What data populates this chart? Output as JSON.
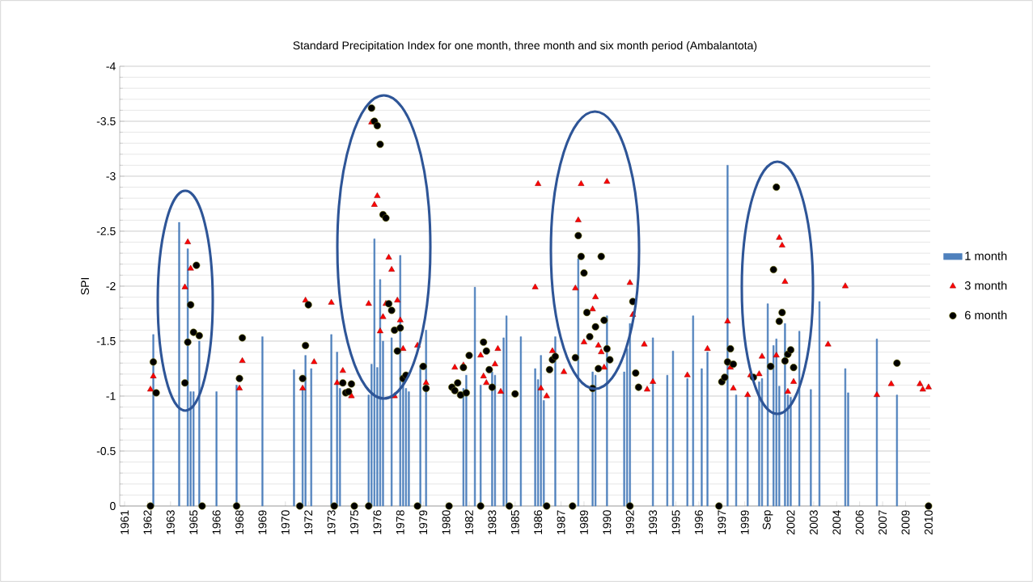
{
  "chart_data": {
    "type": "bar",
    "title": "Standard Precipitation  Index for one month, three month and six month period (Ambalantota)",
    "ylabel": "SPI",
    "categories": [
      "1961",
      null,
      null,
      null,
      null,
      null,
      null,
      null,
      "1962",
      null,
      null,
      null,
      null,
      null,
      null,
      null,
      "1963",
      null,
      null,
      null,
      null,
      null,
      null,
      null,
      "1965",
      null,
      null,
      null,
      null,
      null,
      null,
      null,
      "1966",
      null,
      null,
      null,
      null,
      null,
      null,
      null,
      "1968",
      null,
      null,
      null,
      null,
      null,
      null,
      null,
      "1969",
      null,
      null,
      null,
      null,
      null,
      null,
      null,
      "1970",
      null,
      null,
      null,
      null,
      null,
      null,
      null,
      "1972",
      null,
      null,
      null,
      null,
      null,
      null,
      null,
      "1973",
      null,
      null,
      null,
      null,
      null,
      null,
      null,
      "1975",
      null,
      null,
      null,
      null,
      null,
      null,
      null,
      "1976",
      null,
      null,
      null,
      null,
      null,
      null,
      null,
      "1978",
      null,
      null,
      null,
      null,
      null,
      null,
      null,
      "1979",
      null,
      null,
      null,
      null,
      null,
      null,
      null,
      "1980",
      null,
      null,
      null,
      null,
      null,
      null,
      null,
      "1982",
      null,
      null,
      null,
      null,
      null,
      null,
      null,
      "1983",
      null,
      null,
      null,
      null,
      null,
      null,
      null,
      "1985",
      null,
      null,
      null,
      null,
      null,
      null,
      null,
      "1986",
      null,
      null,
      null,
      null,
      null,
      null,
      null,
      "1987",
      null,
      null,
      null,
      null,
      null,
      null,
      null,
      "1989",
      null,
      null,
      null,
      null,
      null,
      null,
      null,
      "1990",
      null,
      null,
      null,
      null,
      null,
      null,
      null,
      "1992",
      null,
      null,
      null,
      null,
      null,
      null,
      null,
      "1993",
      null,
      null,
      null,
      null,
      null,
      null,
      null,
      "1995",
      null,
      null,
      null,
      null,
      null,
      null,
      null,
      "1996",
      null,
      null,
      null,
      null,
      null,
      null,
      null,
      "1997",
      null,
      null,
      null,
      null,
      null,
      null,
      null,
      "1999",
      null,
      null,
      null,
      null,
      null,
      null,
      null,
      "Sep",
      null,
      null,
      null,
      null,
      null,
      null,
      null,
      "2002",
      null,
      null,
      null,
      null,
      null,
      null,
      null,
      "2003",
      null,
      null,
      null,
      null,
      null,
      null,
      null,
      "2004",
      null,
      null,
      null,
      null,
      null,
      null,
      null,
      "2006",
      null,
      null,
      null,
      null,
      null,
      null,
      null,
      "2007",
      null,
      null,
      null,
      null,
      null,
      null,
      null,
      "2009",
      null,
      null,
      null,
      null,
      null,
      null,
      null,
      "2010"
    ],
    "series": [
      {
        "name": "1 month",
        "color": "#4f81bd",
        "values": [
          null,
          null,
          null,
          null,
          null,
          null,
          null,
          null,
          null,
          null,
          -1.56,
          null,
          null,
          null,
          null,
          null,
          null,
          null,
          null,
          -2.58,
          null,
          null,
          -2.34,
          -1.04,
          -1.04,
          null,
          -1.5,
          null,
          null,
          null,
          null,
          null,
          -1.04,
          null,
          null,
          null,
          null,
          null,
          null,
          -1.1,
          null,
          null,
          null,
          null,
          null,
          null,
          null,
          null,
          -1.54,
          null,
          null,
          null,
          null,
          null,
          null,
          null,
          null,
          null,
          null,
          -1.24,
          null,
          null,
          -1.07,
          -1.37,
          null,
          -1.25,
          null,
          null,
          null,
          null,
          null,
          null,
          -1.56,
          null,
          -1.4,
          -1.07,
          null,
          null,
          null,
          null,
          null,
          null,
          null,
          null,
          null,
          -1.01,
          -1.29,
          -2.43,
          -1.26,
          -2.06,
          -1.5,
          null,
          null,
          -1.53,
          null,
          null,
          -2.28,
          -1.13,
          -1.07,
          -1.04,
          null,
          null,
          null,
          -1.28,
          null,
          -1.6,
          null,
          null,
          null,
          null,
          null,
          null,
          null,
          null,
          null,
          null,
          null,
          null,
          -1.07,
          -1.19,
          null,
          null,
          -1.99,
          null,
          -1.1,
          null,
          null,
          null,
          -1.22,
          -1.19,
          null,
          null,
          -1.53,
          -1.73,
          null,
          null,
          null,
          null,
          -1.54,
          null,
          null,
          null,
          null,
          -1.25,
          -1.15,
          -1.37,
          -0.96,
          null,
          null,
          null,
          -1.54,
          null,
          null,
          null,
          null,
          null,
          null,
          null,
          -2.25,
          null,
          null,
          null,
          null,
          -1.22,
          -1.19,
          null,
          null,
          null,
          -1.73,
          null,
          null,
          null,
          null,
          null,
          -1.22,
          -1.43,
          -1.66,
          null,
          null,
          null,
          null,
          null,
          null,
          null,
          -1.53,
          null,
          null,
          null,
          null,
          -1.19,
          null,
          -1.41,
          null,
          null,
          null,
          null,
          -1.16,
          null,
          -1.73,
          null,
          null,
          -1.25,
          null,
          -1.4,
          null,
          null,
          null,
          null,
          null,
          null,
          -3.1,
          null,
          null,
          -1.01,
          null,
          null,
          null,
          -0.99,
          null,
          null,
          null,
          -1.13,
          -1.16,
          null,
          -1.84,
          null,
          -1.46,
          -1.52,
          -1.09,
          null,
          -1.66,
          -1.01,
          -0.99,
          null,
          null,
          -1.59,
          null,
          null,
          null,
          -1.06,
          null,
          null,
          -1.86,
          null,
          null,
          null,
          null,
          null,
          null,
          null,
          null,
          -1.25,
          -1.03,
          null,
          null,
          null,
          null,
          null,
          null,
          null,
          null,
          null,
          -1.52,
          null,
          null,
          null,
          null,
          null,
          null,
          -1.01,
          null,
          null,
          null,
          null,
          null,
          null,
          null,
          null,
          null,
          null,
          null
        ]
      },
      {
        "name": "3 month",
        "type": "scatter",
        "marker": "triangle",
        "color": "#ff0000",
        "values": [
          null,
          null,
          null,
          null,
          null,
          null,
          null,
          null,
          null,
          -1.06,
          -1.18,
          null,
          null,
          null,
          null,
          null,
          null,
          null,
          null,
          null,
          null,
          -1.99,
          -2.4,
          -2.16,
          null,
          null,
          null,
          null,
          null,
          null,
          null,
          null,
          null,
          null,
          null,
          null,
          null,
          null,
          null,
          null,
          -1.07,
          -1.32,
          null,
          null,
          null,
          null,
          null,
          null,
          null,
          null,
          null,
          null,
          null,
          null,
          null,
          null,
          null,
          null,
          null,
          null,
          null,
          null,
          -1.07,
          -1.87,
          null,
          null,
          -1.31,
          null,
          null,
          null,
          null,
          null,
          -1.85,
          null,
          -1.12,
          null,
          -1.23,
          null,
          null,
          -1.0,
          null,
          null,
          null,
          null,
          null,
          -1.84,
          -3.49,
          -2.74,
          -2.82,
          -1.59,
          -1.72,
          -1.84,
          -2.26,
          -2.15,
          -1.0,
          -1.87,
          -1.69,
          -1.43,
          null,
          null,
          null,
          null,
          -1.46,
          null,
          null,
          -1.12,
          null,
          null,
          null,
          null,
          null,
          null,
          null,
          null,
          null,
          -1.26,
          null,
          null,
          -1.28,
          null,
          null,
          null,
          null,
          null,
          -1.37,
          -1.18,
          -1.12,
          null,
          null,
          -1.29,
          -1.43,
          -1.04,
          null,
          null,
          null,
          null,
          null,
          null,
          null,
          null,
          null,
          null,
          null,
          -1.99,
          -2.93,
          -1.07,
          null,
          -1.0,
          null,
          -1.41,
          null,
          null,
          null,
          -1.22,
          null,
          null,
          null,
          -1.98,
          -2.6,
          -2.93,
          -1.49,
          null,
          null,
          -1.79,
          -1.9,
          -1.46,
          -1.4,
          -1.26,
          -2.95,
          null,
          null,
          null,
          null,
          null,
          null,
          null,
          -2.03,
          -1.74,
          null,
          null,
          null,
          -1.47,
          -1.06,
          null,
          -1.13,
          null,
          null,
          null,
          null,
          null,
          null,
          null,
          null,
          null,
          null,
          null,
          -1.19,
          null,
          null,
          null,
          null,
          null,
          null,
          -1.43,
          null,
          null,
          null,
          null,
          null,
          null,
          -1.68,
          -1.26,
          -1.07,
          null,
          null,
          null,
          null,
          -1.01,
          -1.19,
          null,
          null,
          -1.2,
          -1.36,
          null,
          null,
          null,
          null,
          -1.37,
          -2.44,
          -2.37,
          -2.04,
          -1.04,
          null,
          -1.13,
          null,
          null,
          null,
          null,
          null,
          null,
          null,
          null,
          null,
          null,
          null,
          -1.47,
          null,
          null,
          null,
          null,
          null,
          -2.0,
          null,
          null,
          null,
          null,
          null,
          null,
          null,
          null,
          null,
          null,
          -1.01,
          null,
          null,
          null,
          null,
          -1.11,
          null,
          null,
          null,
          null,
          null,
          null,
          null,
          null,
          null,
          -1.11,
          -1.06,
          null,
          -1.08
        ]
      },
      {
        "name": "6 month",
        "type": "scatter",
        "marker": "circle",
        "color": "#000000",
        "values": [
          null,
          null,
          null,
          null,
          null,
          null,
          null,
          null,
          null,
          0,
          -1.31,
          -1.03,
          null,
          null,
          null,
          null,
          null,
          null,
          null,
          null,
          null,
          -1.12,
          -1.49,
          -1.83,
          -1.58,
          -2.19,
          -1.55,
          0,
          null,
          null,
          null,
          null,
          null,
          null,
          null,
          null,
          null,
          null,
          null,
          0,
          -1.16,
          -1.53,
          null,
          null,
          null,
          null,
          null,
          null,
          null,
          null,
          null,
          null,
          null,
          null,
          null,
          null,
          null,
          null,
          null,
          null,
          null,
          0,
          -1.16,
          -1.46,
          -1.83,
          null,
          null,
          null,
          null,
          null,
          null,
          null,
          null,
          0,
          null,
          null,
          -1.12,
          -1.03,
          -1.04,
          -1.11,
          0,
          null,
          null,
          null,
          null,
          0,
          -3.62,
          -3.5,
          -3.46,
          -3.29,
          -2.65,
          -2.62,
          -1.84,
          -1.78,
          -1.6,
          -1.41,
          -1.62,
          -1.16,
          -1.19,
          null,
          null,
          null,
          0,
          null,
          -1.27,
          -1.07,
          null,
          null,
          null,
          null,
          null,
          null,
          null,
          0,
          -1.08,
          -1.05,
          -1.12,
          -1.01,
          -1.26,
          -1.03,
          -1.37,
          null,
          null,
          null,
          0,
          -1.49,
          -1.41,
          -1.24,
          -1.08,
          null,
          null,
          null,
          null,
          null,
          0,
          null,
          -1.02,
          null,
          null,
          null,
          null,
          null,
          null,
          null,
          null,
          null,
          null,
          0,
          -1.24,
          -1.33,
          -1.36,
          null,
          null,
          null,
          null,
          null,
          0,
          -1.35,
          -2.46,
          -2.27,
          -2.12,
          -1.76,
          -1.54,
          -1.07,
          -1.63,
          -1.25,
          -2.27,
          -1.69,
          -1.43,
          -1.33,
          null,
          null,
          null,
          null,
          null,
          null,
          0,
          -1.86,
          -1.21,
          -1.08,
          null,
          null,
          null,
          null,
          null,
          null,
          null,
          null,
          null,
          null,
          null,
          null,
          null,
          null,
          null,
          null,
          null,
          null,
          null,
          null,
          null,
          null,
          null,
          null,
          null,
          null,
          null,
          0,
          -1.13,
          -1.17,
          -1.31,
          -1.43,
          -1.29,
          null,
          null,
          null,
          null,
          null,
          null,
          -1.17,
          null,
          null,
          null,
          null,
          null,
          -1.27,
          -2.15,
          -2.9,
          -1.68,
          -1.76,
          -1.32,
          -1.38,
          -1.42,
          -1.26,
          null,
          null,
          null,
          null,
          null,
          null,
          null,
          null,
          null,
          null,
          null,
          null,
          null,
          null,
          null,
          null,
          null,
          null,
          null,
          null,
          null,
          null,
          null,
          null,
          null,
          null,
          null,
          null,
          null,
          null,
          null,
          null,
          null,
          null,
          null,
          -1.3,
          null,
          null,
          null,
          null,
          null,
          null,
          null,
          null,
          null,
          null,
          0
        ]
      }
    ],
    "ylim": [
      0,
      -4
    ],
    "yticks": [
      -4,
      -3.5,
      -3,
      -2.5,
      -2,
      -1.5,
      -1,
      -0.5,
      0
    ],
    "grid": "y",
    "legend": "right"
  }
}
